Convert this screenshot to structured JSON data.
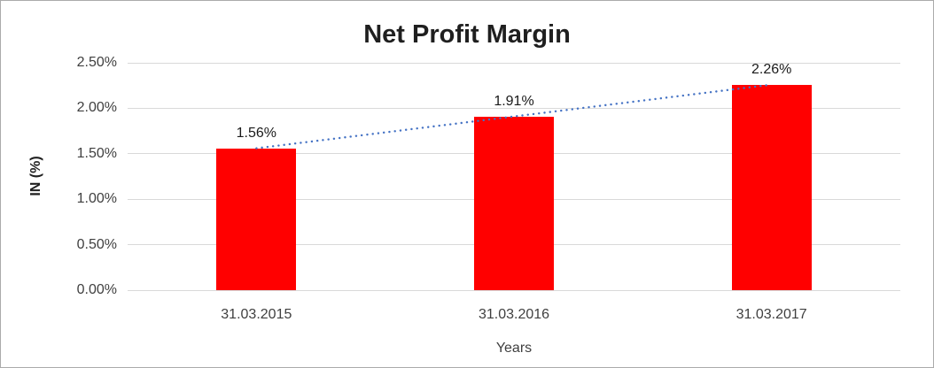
{
  "chart_data": {
    "type": "bar",
    "title": "Net Profit Margin",
    "xlabel": "Years",
    "ylabel": "IN (%)",
    "categories": [
      "31.03.2015",
      "31.03.2016",
      "31.03.2017"
    ],
    "values": [
      1.56,
      1.91,
      2.26
    ],
    "value_labels": [
      "1.56%",
      "1.91%",
      "2.26%"
    ],
    "ylim": [
      0,
      2.5
    ],
    "ytick_step": 0.5,
    "ytick_labels": [
      "0.00%",
      "0.50%",
      "1.00%",
      "1.50%",
      "2.00%",
      "2.50%"
    ],
    "grid": true,
    "legend": "none",
    "bar_color": "#ff0000",
    "gridline_color": "#d9d9d9",
    "trendline": {
      "type": "linear",
      "style": "dotted",
      "color": "#4472c4"
    }
  }
}
